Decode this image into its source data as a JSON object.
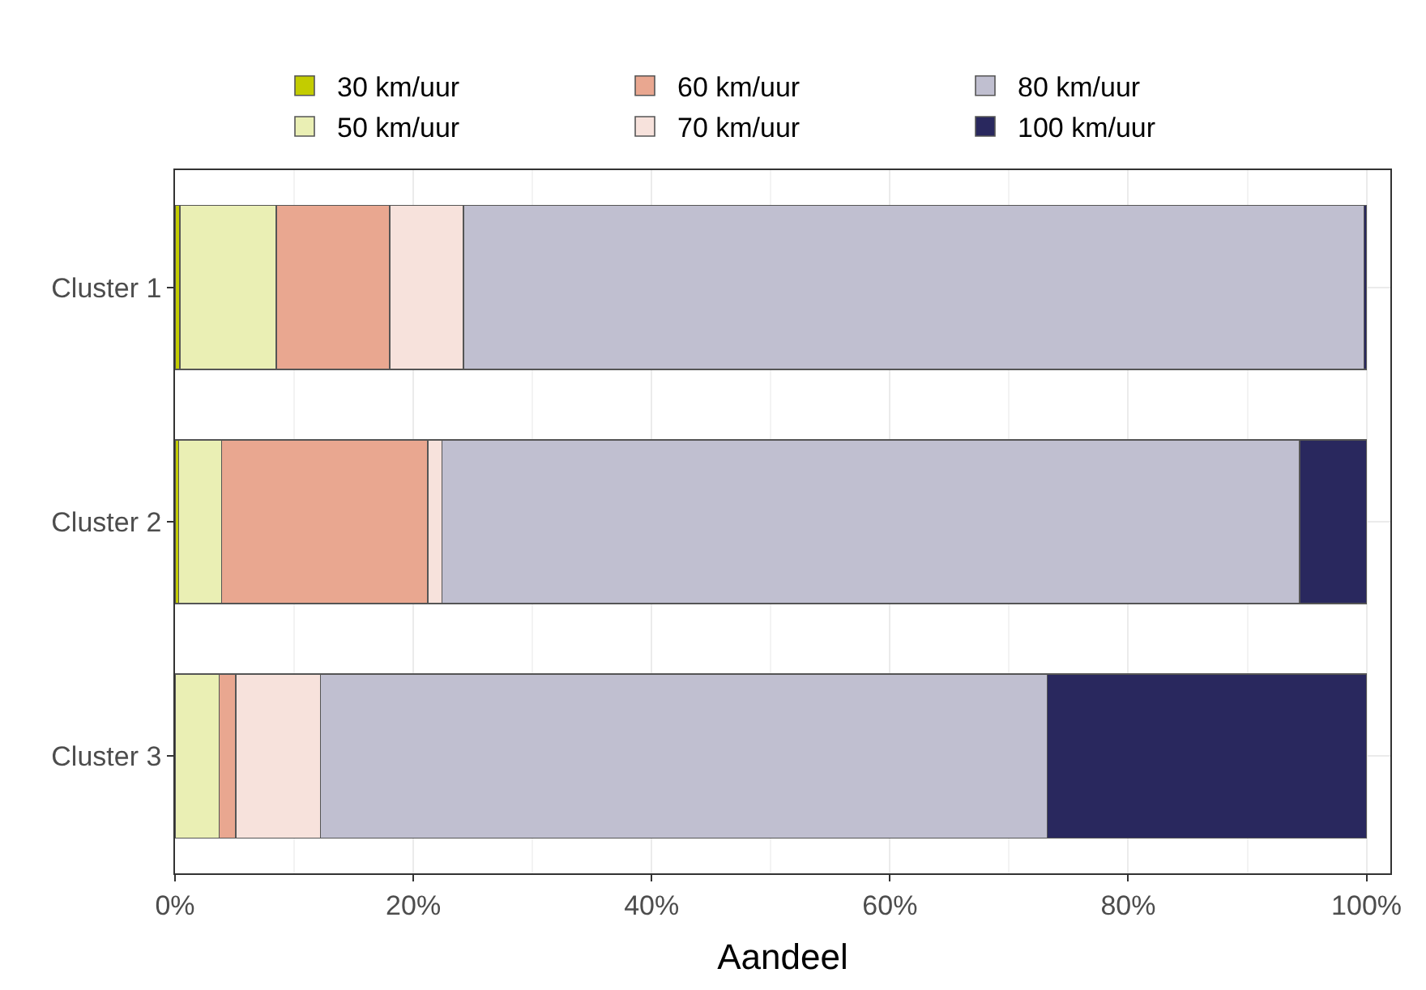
{
  "chart_data": {
    "type": "bar",
    "orientation": "horizontal",
    "stacked": true,
    "xlabel": "Aandeel",
    "categories": [
      "Cluster 1",
      "Cluster 2",
      "Cluster 3"
    ],
    "series": [
      {
        "name": "30 km/uur",
        "color": "#c3cc00",
        "values": [
          0.4,
          0.3,
          0
        ]
      },
      {
        "name": "50 km/uur",
        "color": "#eaefb4",
        "values": [
          8.1,
          3.6,
          3.7
        ]
      },
      {
        "name": "60 km/uur",
        "color": "#e9a790",
        "values": [
          9.5,
          17.3,
          1.4
        ]
      },
      {
        "name": "70 km/uur",
        "color": "#f7e2dc",
        "values": [
          6.2,
          1.2,
          7.1
        ]
      },
      {
        "name": "80 km/uur",
        "color": "#c0bfd0",
        "values": [
          75.6,
          72.0,
          61.0
        ]
      },
      {
        "name": "100 km/uur",
        "color": "#29285e",
        "values": [
          0.2,
          5.6,
          26.8
        ]
      }
    ],
    "xlim": [
      0,
      102
    ],
    "xticks": [
      {
        "value": 0,
        "label": "0%"
      },
      {
        "value": 20,
        "label": "20%"
      },
      {
        "value": 40,
        "label": "40%"
      },
      {
        "value": 60,
        "label": "60%"
      },
      {
        "value": 80,
        "label": "80%"
      },
      {
        "value": 100,
        "label": "100%"
      }
    ],
    "grid": true,
    "legend": "top"
  }
}
